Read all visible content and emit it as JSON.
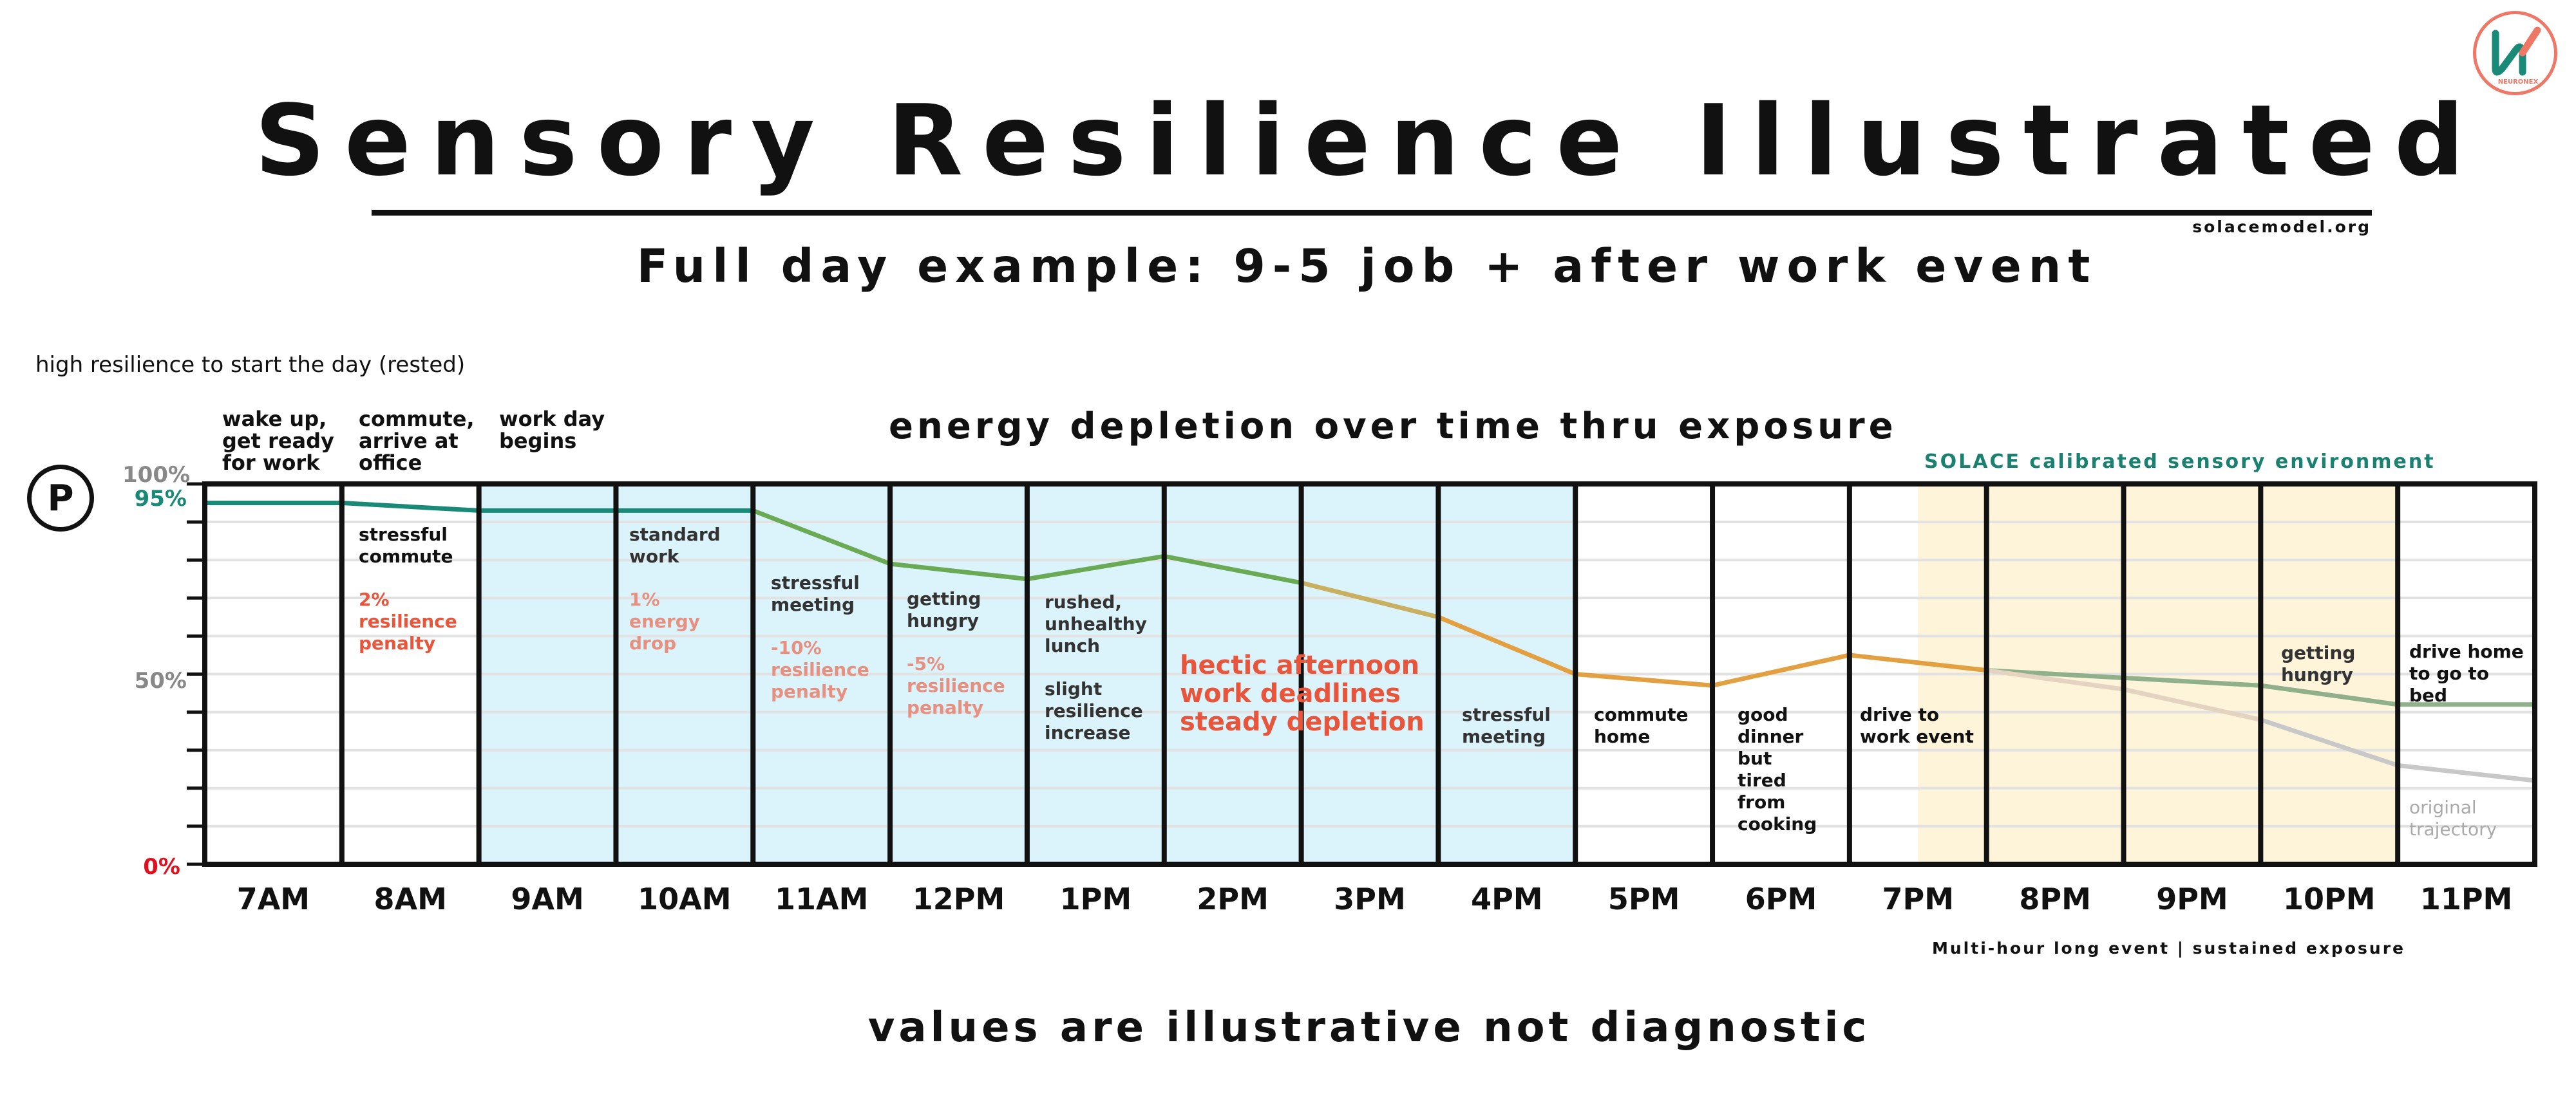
{
  "header": {
    "title": "Sensory Resilience Illustrated",
    "subtitle": "Full day example:  9-5 job + after work event",
    "site": "solacemodel.org",
    "logo_text": "NEURONEX"
  },
  "chart_labels": {
    "top_left_note": "high resilience to start the day (rested)",
    "center_header": "energy depletion over time thru exposure",
    "solace_label": "SOLACE calibrated sensory environment",
    "event_note": "Multi-hour long event | sustained exposure",
    "footer": "values are illustrative not diagnostic",
    "hectic": "hectic afternoon\nwork deadlines\nsteady depletion",
    "original_trajectory": "original\ntrajectory",
    "p_icon": "P"
  },
  "above_labels": {
    "wake": "wake up,\nget ready\nfor work",
    "commute": "commute,\narrive at\noffice",
    "workday": "work day\nbegins"
  },
  "annotations": {
    "stressful_commute": "stressful\ncommute",
    "commute_penalty": "2%\nresilience\npenalty",
    "standard_work": "standard\nwork",
    "energy_drop": "1%\nenergy\ndrop",
    "stressful_meeting_1": "stressful\nmeeting",
    "meeting_penalty": "-10%\nresilience\npenalty",
    "getting_hungry_1": "getting\nhungry",
    "hungry_penalty": "-5%\nresilience\npenalty",
    "rushed_lunch": "rushed,\nunhealthy\nlunch",
    "slight_increase": "slight\nresilience\nincrease",
    "stressful_meeting_2": "stressful\nmeeting",
    "commute_home": "commute\nhome",
    "good_dinner": "good\ndinner\nbut\ntired\nfrom\ncooking",
    "drive_to_event": "drive to\nwork event",
    "getting_hungry_2": "getting\nhungry",
    "drive_home": "drive home\nto go to\nbed"
  },
  "colors": {
    "work_hours_fill": "#dbf3fb",
    "event_fill": "#fdf4d9",
    "penalty_red": "#e8553a",
    "penalty_faded": "#e89080",
    "teal": "#1a8a78",
    "green": "#6aaa55",
    "orange": "#e3a040",
    "sage": "#8fb08a",
    "grey": "#c8c8c8",
    "zero_red": "#e01020"
  },
  "chart_data": {
    "type": "line",
    "x": [
      "7AM",
      "8AM",
      "9AM",
      "10AM",
      "11AM",
      "12PM",
      "1PM",
      "2PM",
      "3PM",
      "4PM",
      "5PM",
      "6PM",
      "7PM",
      "8PM",
      "9PM",
      "10PM",
      "11PM"
    ],
    "ylim": [
      0,
      100
    ],
    "yticks": [
      0,
      50,
      95,
      100
    ],
    "ytick_labels": [
      "0%",
      "50%",
      "95%",
      "100%"
    ],
    "grid": true,
    "series": [
      {
        "points": [
          [
            0,
            95
          ],
          [
            1,
            95
          ],
          [
            2,
            93
          ],
          [
            3,
            93
          ],
          [
            4,
            93
          ],
          [
            5,
            79
          ],
          [
            6,
            75
          ],
          [
            7,
            81
          ],
          [
            8,
            74
          ],
          [
            9,
            65
          ],
          [
            10,
            50
          ],
          [
            11,
            47
          ],
          [
            12,
            55
          ],
          [
            13,
            51
          ],
          [
            14,
            49
          ],
          [
            15,
            47
          ],
          [
            16,
            42
          ],
          [
            17,
            42
          ]
        ]
      },
      {
        "points": [
          [
            13,
            51
          ],
          [
            14,
            46
          ],
          [
            15,
            38
          ],
          [
            16,
            26
          ],
          [
            17,
            22
          ]
        ]
      }
    ],
    "shaded_work_hours": [
      "9AM",
      "4PM"
    ],
    "shaded_event": [
      "7:30PM",
      "11PM"
    ]
  }
}
